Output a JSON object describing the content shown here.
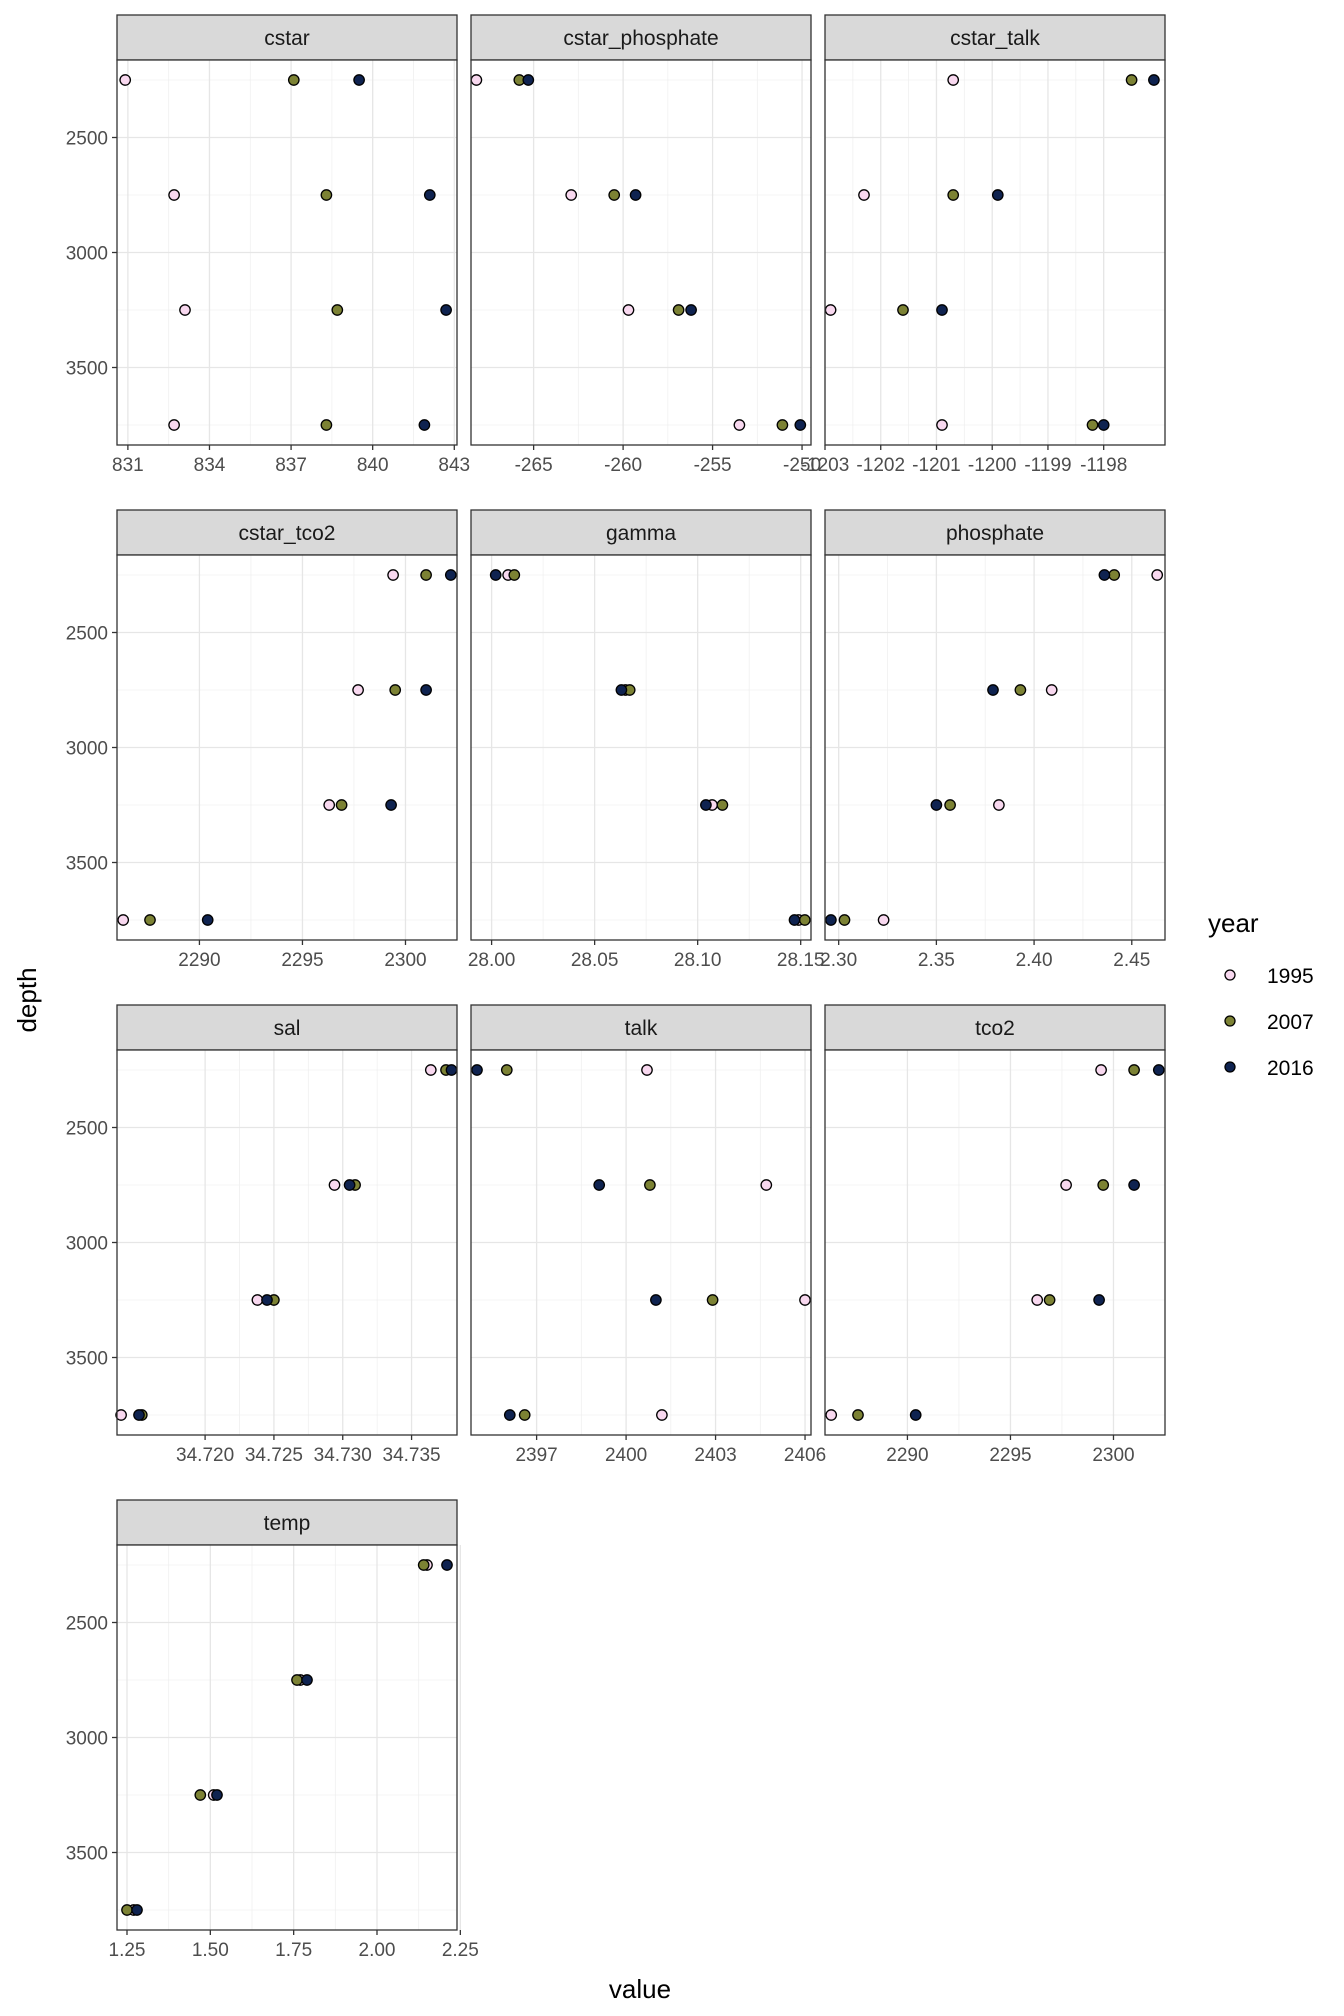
{
  "colors": {
    "1995": "#f8d8ef",
    "2007": "#7c8234",
    "2016": "#0f2350"
  },
  "chart_data": {
    "type": "scatter",
    "xlabel": "value",
    "ylabel": "depth",
    "y_reversed": true,
    "ylim": [
      2250,
      3750
    ],
    "y_ticks": [
      2500,
      3000,
      3500
    ],
    "facet_scales": "free_x",
    "depths": [
      2250,
      2750,
      3250,
      3750
    ],
    "legend": {
      "title": "year",
      "position": "right",
      "entries": [
        "1995",
        "2007",
        "2016"
      ]
    },
    "grid": true,
    "panels": [
      {
        "name": "cstar",
        "xlim": [
          830.6,
          843.1
        ],
        "x_ticks": [
          831,
          834,
          837,
          840,
          843
        ],
        "x_tick_labels": [
          "831",
          "834",
          "837",
          "840",
          "843"
        ],
        "series": [
          {
            "name": "1995",
            "values": [
              830.9,
              832.7,
              833.1,
              832.7
            ]
          },
          {
            "name": "2007",
            "values": [
              837.1,
              838.3,
              838.7,
              838.3
            ]
          },
          {
            "name": "2016",
            "values": [
              839.5,
              842.1,
              842.7,
              841.9
            ]
          }
        ]
      },
      {
        "name": "cstar_phosphate",
        "xlim": [
          -268.5,
          -249.5
        ],
        "x_ticks": [
          -265,
          -260,
          -255,
          -250
        ],
        "x_tick_labels": [
          "-265",
          "-260",
          "-255",
          "-250"
        ],
        "series": [
          {
            "name": "1995",
            "values": [
              -268.2,
              -262.9,
              -259.7,
              -253.5
            ]
          },
          {
            "name": "2007",
            "values": [
              -265.8,
              -260.5,
              -256.9,
              -251.1
            ]
          },
          {
            "name": "2016",
            "values": [
              -265.3,
              -259.3,
              -256.2,
              -250.1
            ]
          }
        ]
      },
      {
        "name": "cstar_talk",
        "xlim": [
          -1203.0,
          -1196.9
        ],
        "x_ticks": [
          -1203,
          -1202,
          -1201,
          -1200,
          -1199,
          -1198
        ],
        "x_tick_labels": [
          "-1203",
          "-1202",
          "-1201",
          "-1200",
          "-1199",
          "-1198"
        ],
        "series": [
          {
            "name": "1995",
            "values": [
              -1200.7,
              -1202.3,
              -1202.9,
              -1200.9
            ]
          },
          {
            "name": "2007",
            "values": [
              -1197.5,
              -1200.7,
              -1201.6,
              -1198.2
            ]
          },
          {
            "name": "2016",
            "values": [
              -1197.1,
              -1199.9,
              -1200.9,
              -1198.0
            ]
          }
        ]
      },
      {
        "name": "cstar_tco2",
        "xlim": [
          2286.0,
          2302.5
        ],
        "x_ticks": [
          2290,
          2295,
          2300
        ],
        "x_tick_labels": [
          "2290",
          "2295",
          "2300"
        ],
        "series": [
          {
            "name": "1995",
            "values": [
              2299.4,
              2297.7,
              2296.3,
              2286.3
            ]
          },
          {
            "name": "2007",
            "values": [
              2301.0,
              2299.5,
              2296.9,
              2287.6
            ]
          },
          {
            "name": "2016",
            "values": [
              2302.2,
              2301.0,
              2299.3,
              2290.4
            ]
          }
        ]
      },
      {
        "name": "gamma",
        "xlim": [
          27.99,
          28.155
        ],
        "x_ticks": [
          28.0,
          28.05,
          28.1,
          28.15
        ],
        "x_tick_labels": [
          "28.00",
          "28.05",
          "28.10",
          "28.15"
        ],
        "series": [
          {
            "name": "1995",
            "values": [
              28.008,
              28.065,
              28.107,
              28.149
            ]
          },
          {
            "name": "2007",
            "values": [
              28.011,
              28.067,
              28.112,
              28.152
            ]
          },
          {
            "name": "2016",
            "values": [
              28.002,
              28.063,
              28.104,
              28.147
            ]
          }
        ]
      },
      {
        "name": "phosphate",
        "xlim": [
          2.293,
          2.467
        ],
        "x_ticks": [
          2.3,
          2.35,
          2.4,
          2.45
        ],
        "x_tick_labels": [
          "2.30",
          "2.35",
          "2.40",
          "2.45"
        ],
        "series": [
          {
            "name": "1995",
            "values": [
              2.463,
              2.409,
              2.382,
              2.323
            ]
          },
          {
            "name": "2007",
            "values": [
              2.441,
              2.393,
              2.357,
              2.303
            ]
          },
          {
            "name": "2016",
            "values": [
              2.436,
              2.379,
              2.35,
              2.296
            ]
          }
        ]
      },
      {
        "name": "sal",
        "xlim": [
          34.7136,
          34.7383
        ],
        "x_ticks": [
          34.72,
          34.725,
          34.73,
          34.735
        ],
        "x_tick_labels": [
          "34.720",
          "34.725",
          "34.730",
          "34.735"
        ],
        "series": [
          {
            "name": "1995",
            "values": [
              34.7364,
              34.7294,
              34.7238,
              34.7139
            ]
          },
          {
            "name": "2007",
            "values": [
              34.7375,
              34.7309,
              34.725,
              34.7154
            ]
          },
          {
            "name": "2016",
            "values": [
              34.7379,
              34.7305,
              34.7245,
              34.7152
            ]
          }
        ]
      },
      {
        "name": "talk",
        "xlim": [
          2394.8,
          2406.2
        ],
        "x_ticks": [
          2397,
          2400,
          2403,
          2406
        ],
        "x_tick_labels": [
          "2397",
          "2400",
          "2403",
          "2406"
        ],
        "series": [
          {
            "name": "1995",
            "values": [
              2400.7,
              2404.7,
              2406.0,
              2401.2
            ]
          },
          {
            "name": "2007",
            "values": [
              2396.0,
              2400.8,
              2402.9,
              2396.6
            ]
          },
          {
            "name": "2016",
            "values": [
              2395.0,
              2399.1,
              2401.0,
              2396.1
            ]
          }
        ]
      },
      {
        "name": "tco2",
        "xlim": [
          2286.0,
          2302.5
        ],
        "x_ticks": [
          2290,
          2295,
          2300
        ],
        "x_tick_labels": [
          "2290",
          "2295",
          "2300"
        ],
        "series": [
          {
            "name": "1995",
            "values": [
              2299.4,
              2297.7,
              2296.3,
              2286.3
            ]
          },
          {
            "name": "2007",
            "values": [
              2301.0,
              2299.5,
              2296.9,
              2287.6
            ]
          },
          {
            "name": "2016",
            "values": [
              2302.2,
              2301.0,
              2299.3,
              2290.4
            ]
          }
        ]
      },
      {
        "name": "temp",
        "xlim": [
          1.22,
          2.24
        ],
        "x_ticks": [
          1.25,
          1.5,
          1.75,
          2.0,
          2.25
        ],
        "x_tick_labels": [
          "1.25",
          "1.50",
          "1.75",
          "2.00",
          "2.25"
        ],
        "series": [
          {
            "name": "1995",
            "values": [
              2.15,
              1.77,
              1.51,
              1.27
            ]
          },
          {
            "name": "2007",
            "values": [
              2.14,
              1.76,
              1.47,
              1.25
            ]
          },
          {
            "name": "2016",
            "values": [
              2.21,
              1.79,
              1.52,
              1.28
            ]
          }
        ]
      }
    ]
  }
}
